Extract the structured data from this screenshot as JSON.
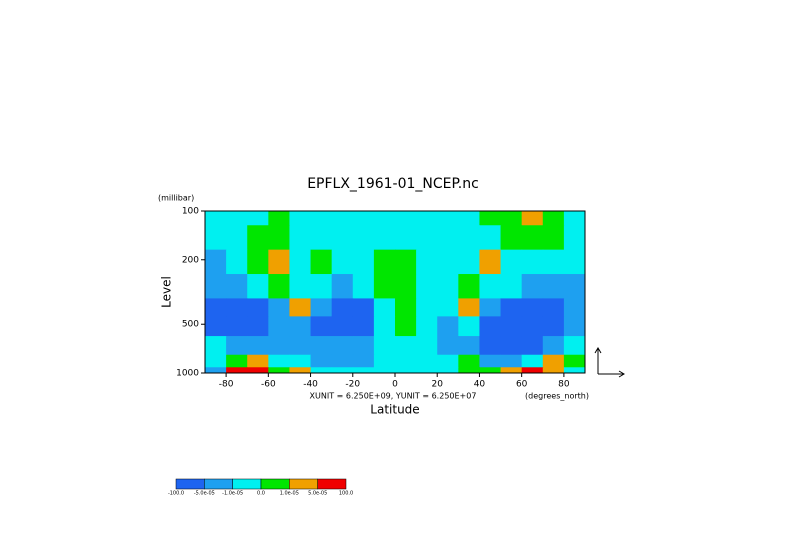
{
  "chart_data": {
    "type": "contour",
    "title": "EPFLX_1961-01_NCEP.nc",
    "y_unit": "(millibar)",
    "y_label": "Level",
    "x_label": "Latitude",
    "x_unit": "(degrees_north)",
    "vector_note": "XUNIT = 6.250E+09, YUNIT = 6.250E+07",
    "xlim": [
      -90,
      90
    ],
    "xticks": [
      -80,
      -60,
      -40,
      -20,
      0,
      20,
      40,
      60,
      80
    ],
    "ylim": [
      100,
      1000
    ],
    "yticks": [
      100,
      200,
      500,
      1000
    ],
    "y_log": true,
    "y_reversed": true,
    "x": [
      -85,
      -75,
      -65,
      -55,
      -45,
      -35,
      -25,
      -15,
      -5,
      5,
      15,
      25,
      35,
      45,
      55,
      65,
      75,
      85
    ],
    "y": [
      100,
      150,
      200,
      300,
      400,
      500,
      700,
      850,
      1000
    ],
    "values": [
      [
        -5e-06,
        -5e-06,
        -5e-06,
        5e-06,
        -5e-06,
        -5e-06,
        -5e-06,
        -5e-06,
        -5e-06,
        -5e-06,
        -5e-06,
        -5e-06,
        -5e-06,
        5e-06,
        5e-06,
        3e-05,
        5e-06,
        -5e-06
      ],
      [
        -5e-06,
        -5e-06,
        5e-06,
        5e-06,
        -5e-06,
        -5e-06,
        -5e-06,
        -5e-06,
        -5e-06,
        -5e-06,
        -5e-06,
        -5e-06,
        -5e-06,
        -5e-06,
        5e-06,
        5e-06,
        5e-06,
        -5e-06
      ],
      [
        -3e-05,
        -5e-06,
        5e-06,
        3e-05,
        -5e-06,
        5e-06,
        -5e-06,
        -5e-06,
        5e-06,
        5e-06,
        -5e-06,
        -5e-06,
        -5e-06,
        3e-05,
        -5e-06,
        -5e-06,
        -5e-06,
        -5e-06
      ],
      [
        -3e-05,
        -3e-05,
        -5e-06,
        5e-06,
        -5e-06,
        -5e-06,
        -3e-05,
        -5e-06,
        5e-06,
        5e-06,
        -5e-06,
        -5e-06,
        5e-06,
        -5e-06,
        -5e-06,
        -3e-05,
        -3e-05,
        -3e-05
      ],
      [
        -7e-05,
        -7e-05,
        -7e-05,
        -3e-05,
        3e-05,
        -3e-05,
        -7e-05,
        -7e-05,
        -5e-06,
        5e-06,
        -5e-06,
        -5e-06,
        3e-05,
        -3e-05,
        -7e-05,
        -7e-05,
        -7e-05,
        -3e-05
      ],
      [
        -7e-05,
        -7e-05,
        -7e-05,
        -3e-05,
        -3e-05,
        -7e-05,
        -7e-05,
        -7e-05,
        -5e-06,
        5e-06,
        -5e-06,
        -3e-05,
        -5e-06,
        -7e-05,
        -7e-05,
        -7e-05,
        -7e-05,
        -3e-05
      ],
      [
        -5e-06,
        -3e-05,
        -3e-05,
        -3e-05,
        -3e-05,
        -3e-05,
        -3e-05,
        -3e-05,
        -5e-06,
        -5e-06,
        -5e-06,
        -3e-05,
        -3e-05,
        -7e-05,
        -7e-05,
        -7e-05,
        -3e-05,
        -5e-06
      ],
      [
        -5e-06,
        5e-06,
        3e-05,
        -5e-06,
        -5e-06,
        -3e-05,
        -3e-05,
        -3e-05,
        -5e-06,
        -5e-06,
        -5e-06,
        -5e-06,
        5e-06,
        -3e-05,
        -3e-05,
        -5e-06,
        3e-05,
        5e-06
      ],
      [
        -3e-05,
        7e-05,
        7e-05,
        5e-06,
        3e-05,
        -5e-06,
        -5e-06,
        -5e-06,
        -5e-06,
        -5e-06,
        -5e-06,
        -5e-06,
        5e-06,
        5e-06,
        3e-05,
        7e-05,
        3e-05,
        -5e-06
      ]
    ],
    "colorbar": {
      "ticks": [
        {
          "value": -100,
          "label": "-100.0"
        },
        {
          "value": -5e-05,
          "label": "-5.0e-05"
        },
        {
          "value": -1e-05,
          "label": "-1.0e-05"
        },
        {
          "value": 0,
          "label": "0.0"
        },
        {
          "value": 1e-05,
          "label": "1.0e-05"
        },
        {
          "value": 5e-05,
          "label": "5.0e-05"
        },
        {
          "value": 100,
          "label": "100.0"
        }
      ],
      "colors": [
        "#1e64f0",
        "#1ea0f0",
        "#00f0f0",
        "#00e600",
        "#f0a000",
        "#f00000"
      ]
    }
  }
}
